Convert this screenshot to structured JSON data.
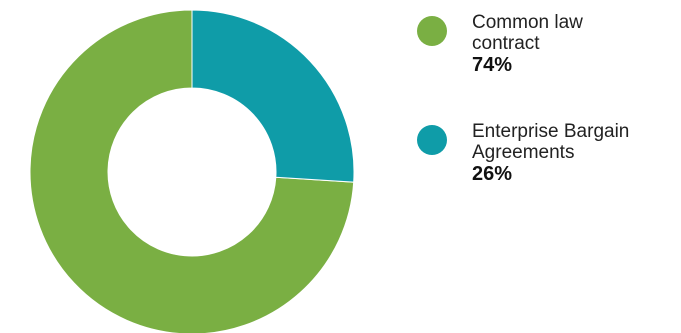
{
  "chart_data": {
    "type": "pie",
    "donut": true,
    "categories": [
      "Common law contract",
      "Enterprise Bargain Agreements"
    ],
    "values": [
      74,
      26
    ],
    "unit": "%",
    "colors": [
      "#7aaf43",
      "#0f9ca8"
    ],
    "legend": "right",
    "labels": {
      "common_law": {
        "label": "Common law contract",
        "value": "74%"
      },
      "eba": {
        "label": "Enterprise Bargain Agreements",
        "value": "26%"
      }
    }
  }
}
